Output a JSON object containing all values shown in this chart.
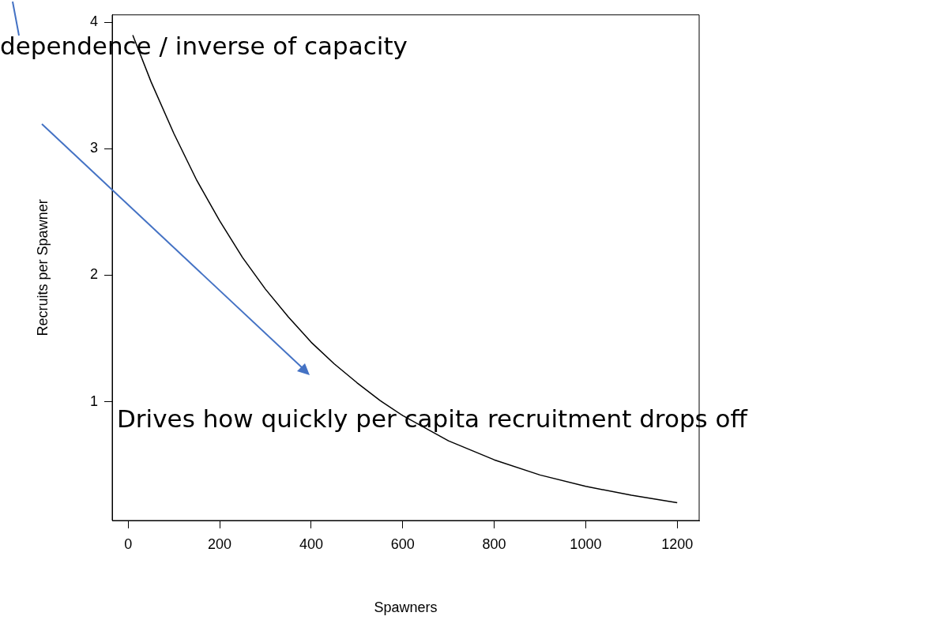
{
  "chart_data": {
    "type": "line",
    "xlabel": "Spawners",
    "ylabel": "Recruits per Spawner",
    "x": [
      10,
      50,
      100,
      150,
      200,
      250,
      300,
      350,
      400,
      450,
      500,
      550,
      600,
      700,
      800,
      900,
      1000,
      1100,
      1200
    ],
    "series": [
      {
        "color": "#000000",
        "values": [
          3.9,
          3.53,
          3.12,
          2.75,
          2.43,
          2.14,
          1.89,
          1.67,
          1.47,
          1.3,
          1.15,
          1.01,
          0.89,
          0.69,
          0.54,
          0.42,
          0.33,
          0.26,
          0.2
        ]
      }
    ],
    "xlim": [
      -35,
      1248
    ],
    "ylim": [
      0.06,
      4.06
    ],
    "xticks": [
      0,
      200,
      400,
      600,
      800,
      1000,
      1200
    ],
    "yticks": [
      1,
      2,
      3,
      4
    ],
    "grid": false,
    "legend": false,
    "marker": "none",
    "line_style": "solid",
    "annotations": [
      "dependence / inverse of capacity",
      "Drives how quickly per capita recruitment drops off"
    ]
  }
}
